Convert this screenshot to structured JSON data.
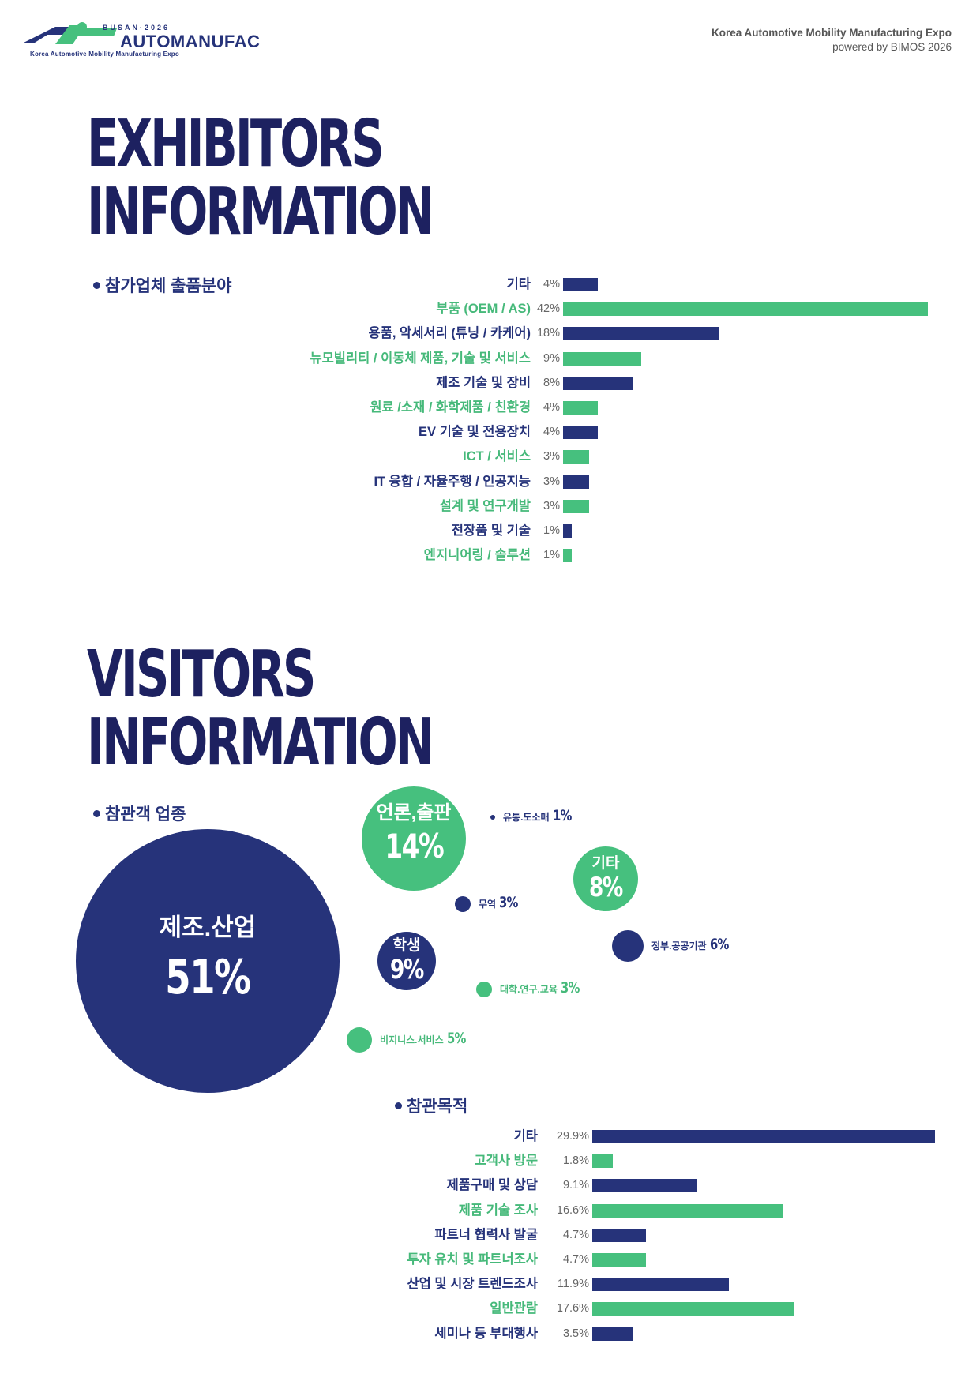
{
  "header": {
    "logo_busan": "BUSAN·2026",
    "logo_word": "AUTOMANUFAC",
    "logo_sub": "Korea Automotive Mobility Manufacturing Expo",
    "right_line1": "Korea Automotive Mobility Manufacturing Expo",
    "right_line2": "powered by BIMOS 2026",
    "colors": {
      "navy": "#26337a",
      "green": "#46c07e"
    }
  },
  "exhibitors": {
    "title_line1": "EXHIBITORS",
    "title_line2": "INFORMATION",
    "section_label": "참가업체 출품분야"
  },
  "visitors": {
    "title_line1": "VISITORS",
    "title_line2": "INFORMATION",
    "industry_label": "참관객 업종",
    "purpose_label": "참관목적"
  },
  "chart_data": [
    {
      "type": "bar",
      "orientation": "horizontal",
      "title": "참가업체 출품분야",
      "categories": [
        "기타",
        "부품 (OEM / AS)",
        "용품, 악세서리 (튜닝 / 카케어)",
        "뉴모빌리티  / 이동체 제품, 기술 및 서비스",
        "제조 기술 및 장비",
        "원료 /소재 / 화학제품 / 친환경",
        "EV 기술 및 전용장치",
        "ICT / 서비스",
        "IT 융합 / 자율주행 / 인공지능",
        "설계 및 연구개발",
        "전장품 및 기술",
        "엔지니어링 / 솔루션"
      ],
      "values": [
        4,
        42,
        18,
        9,
        8,
        4,
        4,
        3,
        3,
        3,
        1,
        1
      ],
      "value_labels": [
        "4%",
        "42%",
        "18%",
        "9%",
        "8%",
        "4%",
        "4%",
        "3%",
        "3%",
        "3%",
        "1%",
        "1%"
      ],
      "colors": [
        "navy",
        "green",
        "navy",
        "green",
        "navy",
        "green",
        "navy",
        "green",
        "navy",
        "green",
        "navy",
        "green"
      ],
      "unit": "%"
    },
    {
      "type": "bubble",
      "title": "참관객 업종",
      "items": [
        {
          "name": "제조.산업",
          "value": 51,
          "label": "51%",
          "color": "navy"
        },
        {
          "name": "언론,출판",
          "value": 14,
          "label": "14%",
          "color": "green"
        },
        {
          "name": "학생",
          "value": 9,
          "label": "9%",
          "color": "navy"
        },
        {
          "name": "기타",
          "value": 8,
          "label": "8%",
          "color": "green"
        },
        {
          "name": "정부.공공기관",
          "value": 6,
          "label": "6%",
          "color": "navy"
        },
        {
          "name": "비지니스.서비스",
          "value": 5,
          "label": "5%",
          "color": "green"
        },
        {
          "name": "무역",
          "value": 3,
          "label": "3%",
          "color": "navy"
        },
        {
          "name": "대학.연구.교육",
          "value": 3,
          "label": "3%",
          "color": "green"
        },
        {
          "name": "유통.도소매",
          "value": 1,
          "label": "1%",
          "color": "navy"
        }
      ]
    },
    {
      "type": "bar",
      "orientation": "horizontal",
      "title": "참관목적",
      "categories": [
        "기타",
        "고객사 방문",
        "제품구매 및 상담",
        "제품 기술 조사",
        "파트너 협력사 발굴",
        "투자 유치 및 파트너조사",
        "산업 및 시장 트렌드조사",
        "일반관람",
        "세미나 등 부대행사"
      ],
      "values": [
        29.9,
        1.8,
        9.1,
        16.6,
        4.7,
        4.7,
        11.9,
        17.6,
        3.5
      ],
      "value_labels": [
        "29.9%",
        "1.8%",
        "9.1%",
        "16.6%",
        "4.7%",
        "4.7%",
        "11.9%",
        "17.6%",
        "3.5%"
      ],
      "colors": [
        "navy",
        "green",
        "navy",
        "green",
        "navy",
        "green",
        "navy",
        "green",
        "navy"
      ],
      "unit": "%"
    }
  ]
}
